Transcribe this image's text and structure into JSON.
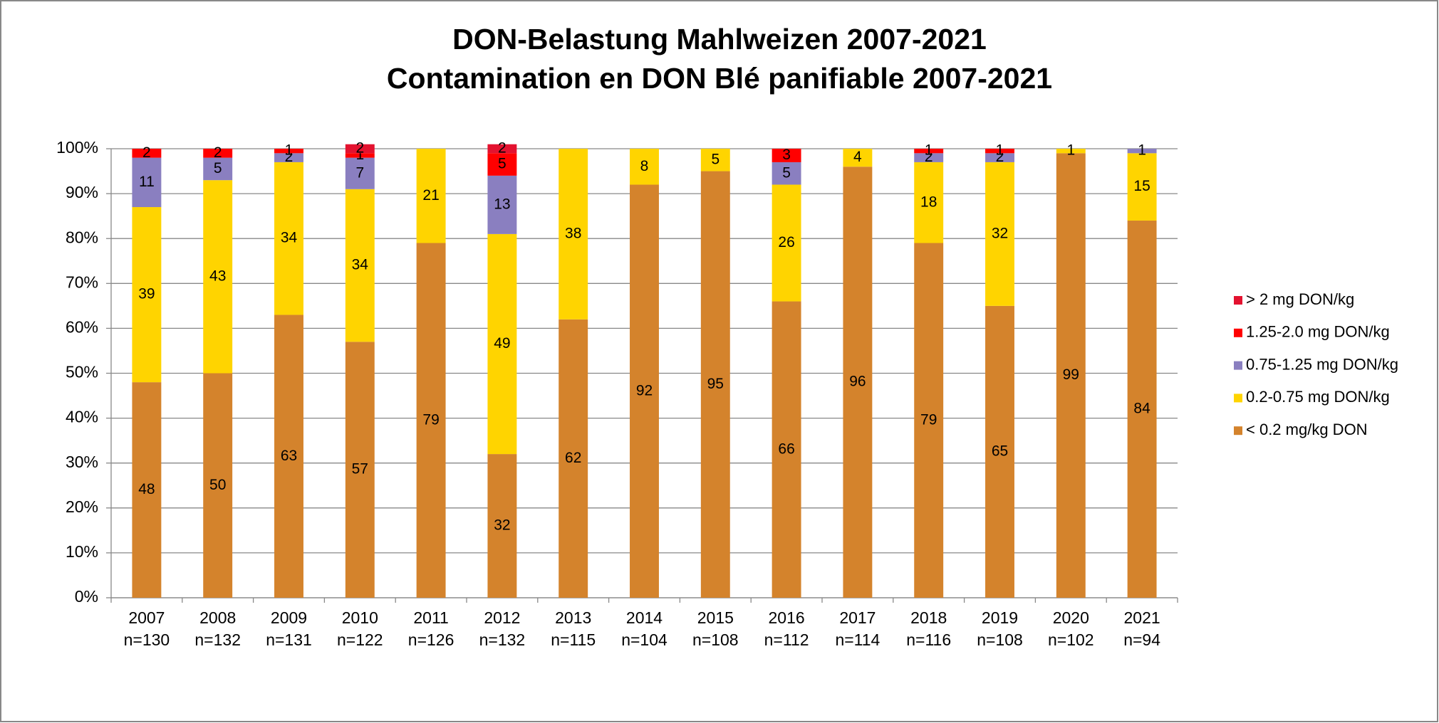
{
  "chart_data": {
    "type": "stacked_bar",
    "title": "DON-Belastung Mahlweizen 2007-2021",
    "subtitle": "Contamination en DON Blé panifiable 2007-2021",
    "categories": [
      "2007",
      "2008",
      "2009",
      "2010",
      "2011",
      "2012",
      "2013",
      "2014",
      "2015",
      "2016",
      "2017",
      "2018",
      "2019",
      "2020",
      "2021"
    ],
    "sample_sizes": [
      "n=130",
      "n=132",
      "n=131",
      "n=122",
      "n=126",
      "n=132",
      "n=115",
      "n=104",
      "n=108",
      "n=112",
      "n=114",
      "n=116",
      "n=108",
      "n=102",
      "n=94"
    ],
    "series": [
      {
        "name": "< 0.2 mg/kg DON",
        "color": "#d4832c",
        "values": [
          48,
          50,
          63,
          57,
          79,
          32,
          62,
          92,
          95,
          66,
          96,
          79,
          65,
          99,
          84
        ]
      },
      {
        "name": "0.2-0.75 mg DON/kg",
        "color": "#ffd400",
        "values": [
          39,
          43,
          34,
          34,
          21,
          49,
          38,
          8,
          5,
          26,
          4,
          18,
          32,
          1,
          15
        ]
      },
      {
        "name": "0.75-1.25 mg DON/kg",
        "color": "#8a7fc0",
        "values": [
          11,
          5,
          2,
          7,
          null,
          13,
          null,
          null,
          null,
          5,
          null,
          2,
          2,
          null,
          1
        ]
      },
      {
        "name": "1.25-2.0 mg DON/kg",
        "color": "#ff0000",
        "values": [
          2,
          2,
          1,
          1,
          null,
          5,
          null,
          null,
          null,
          3,
          null,
          1,
          1,
          null,
          null
        ]
      },
      {
        "name": "> 2 mg DON/kg",
        "color": "#e3122f",
        "values": [
          null,
          null,
          null,
          2,
          null,
          2,
          null,
          null,
          null,
          null,
          null,
          null,
          null,
          null,
          null
        ]
      }
    ],
    "ylim": [
      0,
      100
    ],
    "yticks": [
      {
        "value": 0,
        "label": "0%"
      },
      {
        "value": 10,
        "label": "10%"
      },
      {
        "value": 20,
        "label": "20%"
      },
      {
        "value": 30,
        "label": "30%"
      },
      {
        "value": 40,
        "label": "40%"
      },
      {
        "value": 50,
        "label": "50%"
      },
      {
        "value": 60,
        "label": "60%"
      },
      {
        "value": 70,
        "label": "70%"
      },
      {
        "value": 80,
        "label": "80%"
      },
      {
        "value": 90,
        "label": "90%"
      },
      {
        "value": 100,
        "label": "100%"
      }
    ],
    "grid": true,
    "legend": "right"
  }
}
